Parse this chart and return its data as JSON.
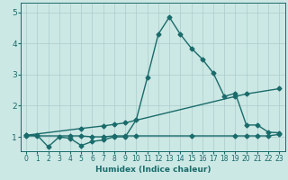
{
  "xlabel": "Humidex (Indice chaleur)",
  "xlim": [
    -0.5,
    23.5
  ],
  "ylim": [
    0.55,
    5.3
  ],
  "yticks": [
    1,
    2,
    3,
    4,
    5
  ],
  "xticks": [
    0,
    1,
    2,
    3,
    4,
    5,
    6,
    7,
    8,
    9,
    10,
    11,
    12,
    13,
    14,
    15,
    16,
    17,
    18,
    19,
    20,
    21,
    22,
    23
  ],
  "background_color": "#cce8e4",
  "grid_color": "#aacccc",
  "line_color": "#1a6b6b",
  "line1_x": [
    0,
    1,
    2,
    3,
    4,
    5,
    6,
    7,
    8,
    9,
    10,
    11,
    12,
    13,
    14,
    15,
    16,
    17,
    18,
    19,
    20,
    21,
    22,
    23
  ],
  "line1_y": [
    1.05,
    1.05,
    0.68,
    1.0,
    0.95,
    0.72,
    0.85,
    0.9,
    1.0,
    1.0,
    1.55,
    2.9,
    4.3,
    4.85,
    4.3,
    3.85,
    3.5,
    3.05,
    2.3,
    2.4,
    1.38,
    1.38,
    1.15,
    1.13
  ],
  "line2_x": [
    0,
    5,
    7,
    8,
    9,
    19,
    20,
    23
  ],
  "line2_y": [
    1.05,
    1.27,
    1.35,
    1.4,
    1.45,
    2.3,
    2.38,
    2.55
  ],
  "line3_x": [
    0,
    1,
    4,
    5,
    6,
    7,
    8,
    9,
    10,
    15,
    19,
    20,
    21,
    22,
    23
  ],
  "line3_y": [
    1.03,
    1.03,
    1.03,
    1.03,
    1.0,
    1.0,
    1.03,
    1.03,
    1.03,
    1.03,
    1.03,
    1.03,
    1.03,
    1.03,
    1.08
  ],
  "line_width": 1.0,
  "marker": "D",
  "marker_size": 2.5
}
